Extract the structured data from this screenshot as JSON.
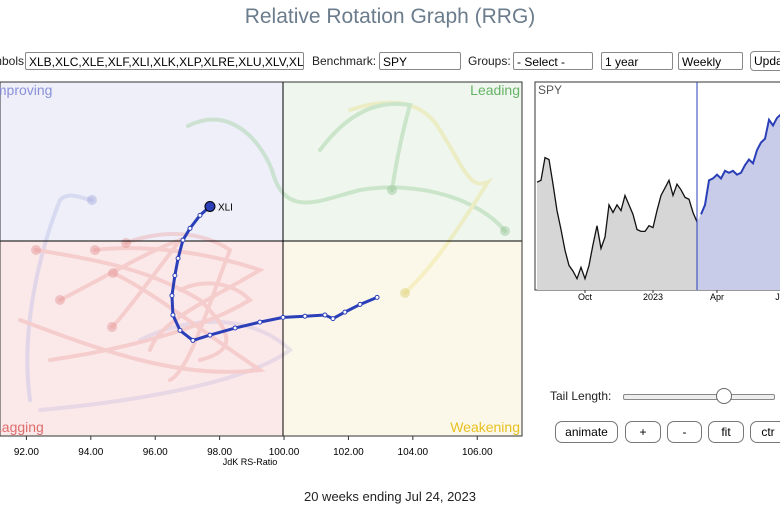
{
  "header": {
    "title": "Relative Rotation Graph (RRG)"
  },
  "toolbar": {
    "symbols_label": "Symbols:",
    "symbols": "XLB,XLC,XLE,XLF,XLI,XLK,XLP,XLRE,XLU,XLV,XLY",
    "benchmark_label": "Benchmark:",
    "benchmark": "SPY",
    "groups_label": "Groups:",
    "groups": "- Select -",
    "period": "1 year",
    "frequency": "Weekly",
    "update": "Update"
  },
  "rrg": {
    "type": "scatter",
    "xlabel": "JdK RS-Ratio",
    "xlim": [
      91.18,
      107.39
    ],
    "ylim": [
      96.7,
      102.7
    ],
    "xticks": [
      {
        "value": 92,
        "label": "92.00"
      },
      {
        "value": 94,
        "label": "94.00"
      },
      {
        "value": 96,
        "label": "96.00"
      },
      {
        "value": 98,
        "label": "98.00"
      },
      {
        "value": 100,
        "label": "100.00"
      },
      {
        "value": 102,
        "label": "102.00"
      },
      {
        "value": 104,
        "label": "104.00"
      },
      {
        "value": 106,
        "label": "106.00"
      }
    ],
    "quadrants": [
      "Improving",
      "Leading",
      "Lagging",
      "Weakening"
    ],
    "series": [
      {
        "name": "XLI",
        "color": "#2a3fb8",
        "x": [
          102.89,
          102.36,
          101.89,
          101.52,
          101.27,
          100.65,
          99.97,
          99.25,
          98.48,
          97.7,
          97.17,
          96.77,
          96.55,
          96.52,
          96.61,
          96.71,
          96.86,
          97.08,
          97.39,
          97.7
        ],
        "y": [
          99.05,
          98.93,
          98.8,
          98.69,
          98.75,
          98.73,
          98.71,
          98.63,
          98.53,
          98.41,
          98.32,
          98.49,
          98.75,
          99.08,
          99.42,
          99.71,
          100.02,
          100.22,
          100.44,
          100.59
        ]
      }
    ]
  },
  "price_chart": {
    "type": "line",
    "title": "SPY",
    "ylim": [
      350,
      460
    ],
    "xlim": [
      0,
      61.5
    ],
    "xticks": [
      {
        "value": 12,
        "label": "Oct"
      },
      {
        "value": 29,
        "label": "2023"
      },
      {
        "value": 45,
        "label": "Apr"
      },
      {
        "value": 61,
        "label": "Jul"
      }
    ],
    "series": [
      {
        "name": "history",
        "color": "#111111",
        "values": [
          407,
          408,
          420,
          419,
          406,
          392,
          382,
          371,
          363,
          360,
          356,
          362,
          356,
          363,
          374,
          384,
          372,
          378,
          395,
          391,
          395,
          392,
          400,
          395,
          390,
          382,
          381,
          381,
          384,
          383,
          392,
          400,
          404,
          408,
          400,
          406,
          403,
          399,
          398,
          391,
          386
        ]
      },
      {
        "name": "tail",
        "color": "#2a3fb8",
        "values": [
          390,
          395,
          408,
          409,
          411,
          409,
          413,
          412,
          413,
          411,
          412,
          416,
          419,
          417,
          424,
          428,
          430,
          440,
          437,
          441,
          443
        ]
      }
    ]
  },
  "controls": {
    "tail_length_label": "Tail Length:",
    "buttons": [
      "animate",
      "+",
      "-",
      "fit",
      "ctr"
    ]
  },
  "footer": {
    "caption": "20 weeks ending Jul 24, 2023"
  }
}
